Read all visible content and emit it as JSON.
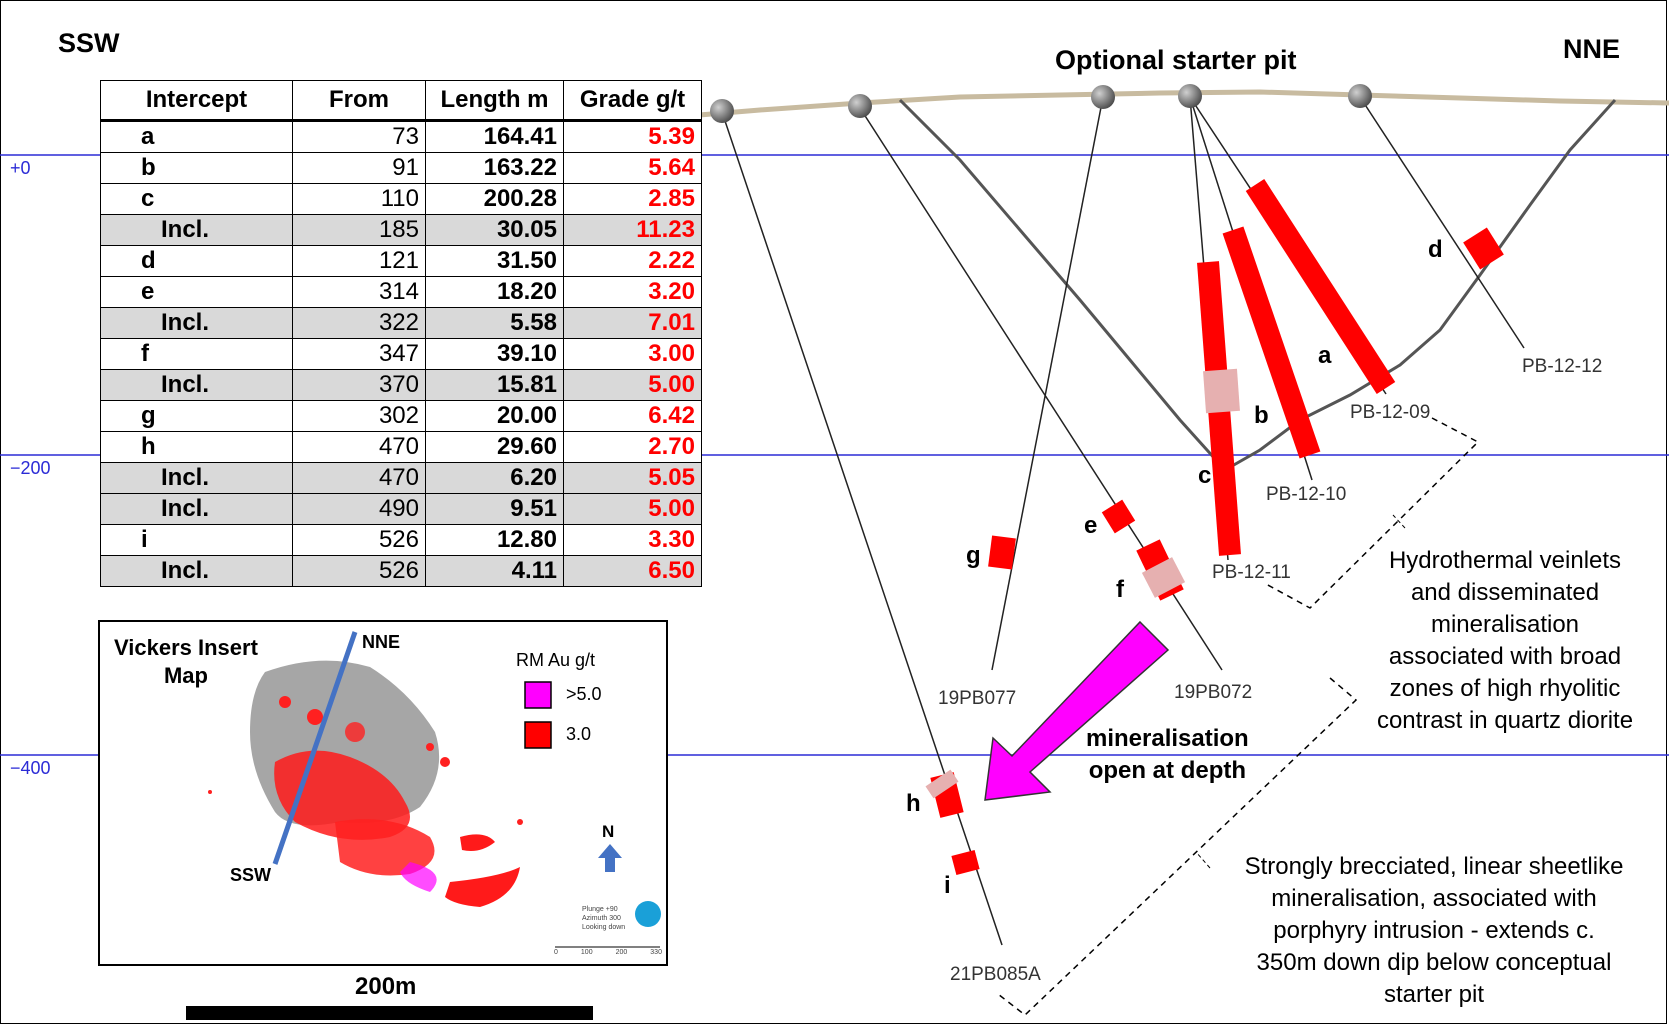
{
  "orientation": {
    "left": "SSW",
    "right": "NNE"
  },
  "pit_title": "Optional starter pit",
  "elevations": [
    "+0",
    "−200",
    "−400"
  ],
  "table": {
    "headers": [
      "Intercept",
      "From",
      "Length m",
      "Grade g/t"
    ],
    "rows": [
      {
        "intercept": "a",
        "from": "73",
        "length": "164.41",
        "grade": "5.39",
        "incl": false
      },
      {
        "intercept": "b",
        "from": "91",
        "length": "163.22",
        "grade": "5.64",
        "incl": false
      },
      {
        "intercept": "c",
        "from": "110",
        "length": "200.28",
        "grade": "2.85",
        "incl": false
      },
      {
        "intercept": "Incl.",
        "from": "185",
        "length": "30.05",
        "grade": "11.23",
        "incl": true
      },
      {
        "intercept": "d",
        "from": "121",
        "length": "31.50",
        "grade": "2.22",
        "incl": false
      },
      {
        "intercept": "e",
        "from": "314",
        "length": "18.20",
        "grade": "3.20",
        "incl": false
      },
      {
        "intercept": "Incl.",
        "from": "322",
        "length": "5.58",
        "grade": "7.01",
        "incl": true
      },
      {
        "intercept": "f",
        "from": "347",
        "length": "39.10",
        "grade": "3.00",
        "incl": false
      },
      {
        "intercept": "Incl.",
        "from": "370",
        "length": "15.81",
        "grade": "5.00",
        "incl": true
      },
      {
        "intercept": "g",
        "from": "302",
        "length": "20.00",
        "grade": "6.42",
        "incl": false
      },
      {
        "intercept": "h",
        "from": "470",
        "length": "29.60",
        "grade": "2.70",
        "incl": false
      },
      {
        "intercept": "Incl.",
        "from": "470",
        "length": "6.20",
        "grade": "5.05",
        "incl": true
      },
      {
        "intercept": "Incl.",
        "from": "490",
        "length": "9.51",
        "grade": "5.00",
        "incl": true
      },
      {
        "intercept": "i",
        "from": "526",
        "length": "12.80",
        "grade": "3.30",
        "incl": false
      },
      {
        "intercept": "Incl.",
        "from": "526",
        "length": "4.11",
        "grade": "6.50",
        "incl": true
      }
    ]
  },
  "inset": {
    "title_line1": "Vickers Insert",
    "title_line2": "Map",
    "nne": "NNE",
    "ssw": "SSW",
    "legend_title": "RM Au g/t",
    "legend": [
      {
        "label": ">5.0",
        "color": "#ff00ff"
      },
      {
        "label": "3.0",
        "color": "#ff0000"
      }
    ],
    "north": "N",
    "view_info": [
      "Plunge +90",
      "Azimuth 300",
      "Looking down"
    ],
    "mini_scale": [
      "0",
      "100",
      "200",
      "330"
    ]
  },
  "scale_label": "200m",
  "intercept_labels": [
    "a",
    "b",
    "c",
    "d",
    "e",
    "f",
    "g",
    "h",
    "i"
  ],
  "holes": [
    "PB-12-09",
    "PB-12-10",
    "PB-12-11",
    "PB-12-12",
    "19PB077",
    "19PB072",
    "21PB085A"
  ],
  "depth_arrow_text": [
    "mineralisation",
    "open at depth"
  ],
  "note_upper": [
    "Hydrothermal veinlets",
    "and disseminated",
    "mineralisation",
    "associated with broad",
    "zones of high rhyolitic",
    "contrast in quartz diorite"
  ],
  "note_lower": [
    "Strongly brecciated, linear sheetlike",
    "mineralisation, associated with",
    "porphyry intrusion - extends c.",
    "350m down dip below conceptual",
    "starter pit"
  ],
  "colors": {
    "mineral": "#ff0000",
    "high_grade": "#ff00ff",
    "section_line": "#2b2bd6",
    "topo": "#c8bba0"
  }
}
